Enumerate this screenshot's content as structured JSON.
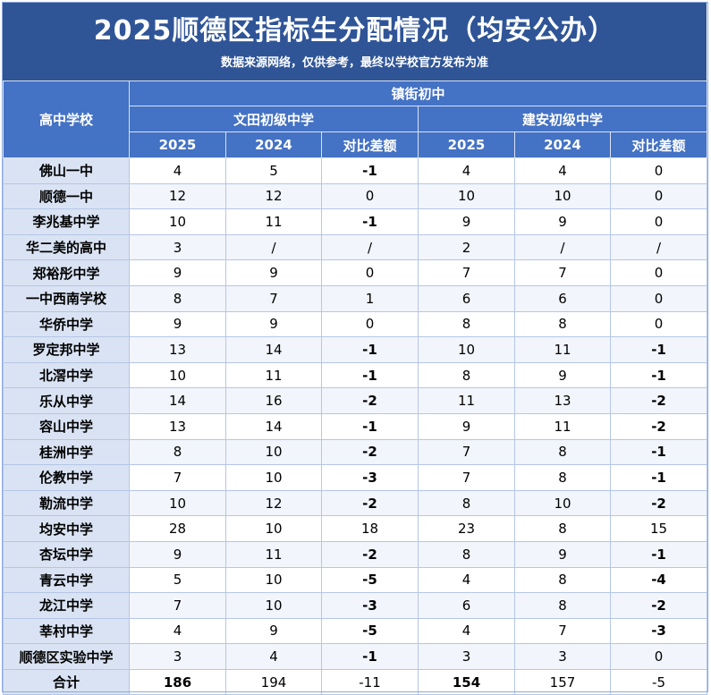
{
  "title": "2025顺德区指标生分配情况（均安公办）",
  "subtitle": "数据来源网络，仅供参考，最终以学校官方发布为准",
  "headers": {
    "school_col": "高中学校",
    "group": "镇街初中",
    "middle_schools": [
      "文田初级中学",
      "建安初级中学"
    ],
    "cols": [
      "2025",
      "2024",
      "对比差额",
      "2025",
      "2024",
      "对比差额"
    ]
  },
  "rows": [
    {
      "school": "佛山一中",
      "v": [
        "4",
        "5",
        "-1",
        "4",
        "4",
        "0"
      ]
    },
    {
      "school": "顺德一中",
      "v": [
        "12",
        "12",
        "0",
        "10",
        "10",
        "0"
      ]
    },
    {
      "school": "李兆基中学",
      "v": [
        "10",
        "11",
        "-1",
        "9",
        "9",
        "0"
      ]
    },
    {
      "school": "华二美的高中",
      "v": [
        "3",
        "/",
        "/",
        "2",
        "/",
        "/"
      ]
    },
    {
      "school": "郑裕彤中学",
      "v": [
        "9",
        "9",
        "0",
        "7",
        "7",
        "0"
      ]
    },
    {
      "school": "一中西南学校",
      "v": [
        "8",
        "7",
        "1",
        "6",
        "6",
        "0"
      ]
    },
    {
      "school": "华侨中学",
      "v": [
        "9",
        "9",
        "0",
        "8",
        "8",
        "0"
      ]
    },
    {
      "school": "罗定邦中学",
      "v": [
        "13",
        "14",
        "-1",
        "10",
        "11",
        "-1"
      ]
    },
    {
      "school": "北滘中学",
      "v": [
        "10",
        "11",
        "-1",
        "8",
        "9",
        "-1"
      ]
    },
    {
      "school": "乐从中学",
      "v": [
        "14",
        "16",
        "-2",
        "11",
        "13",
        "-2"
      ]
    },
    {
      "school": "容山中学",
      "v": [
        "13",
        "14",
        "-1",
        "9",
        "11",
        "-2"
      ]
    },
    {
      "school": "桂洲中学",
      "v": [
        "8",
        "10",
        "-2",
        "7",
        "8",
        "-1"
      ]
    },
    {
      "school": "伦教中学",
      "v": [
        "7",
        "10",
        "-3",
        "7",
        "8",
        "-1"
      ]
    },
    {
      "school": "勒流中学",
      "v": [
        "10",
        "12",
        "-2",
        "8",
        "10",
        "-2"
      ]
    },
    {
      "school": "均安中学",
      "v": [
        "28",
        "10",
        "18",
        "23",
        "8",
        "15"
      ]
    },
    {
      "school": "杏坛中学",
      "v": [
        "9",
        "11",
        "-2",
        "8",
        "9",
        "-1"
      ]
    },
    {
      "school": "青云中学",
      "v": [
        "5",
        "10",
        "-5",
        "4",
        "8",
        "-4"
      ]
    },
    {
      "school": "龙江中学",
      "v": [
        "7",
        "10",
        "-3",
        "6",
        "8",
        "-2"
      ]
    },
    {
      "school": "莘村中学",
      "v": [
        "4",
        "9",
        "-5",
        "4",
        "7",
        "-3"
      ]
    },
    {
      "school": "顺德区实验中学",
      "v": [
        "3",
        "4",
        "-1",
        "3",
        "3",
        "0"
      ]
    }
  ],
  "total": {
    "school": "合计",
    "v": [
      "186",
      "194",
      "-11",
      "154",
      "157",
      "-5"
    ]
  }
}
